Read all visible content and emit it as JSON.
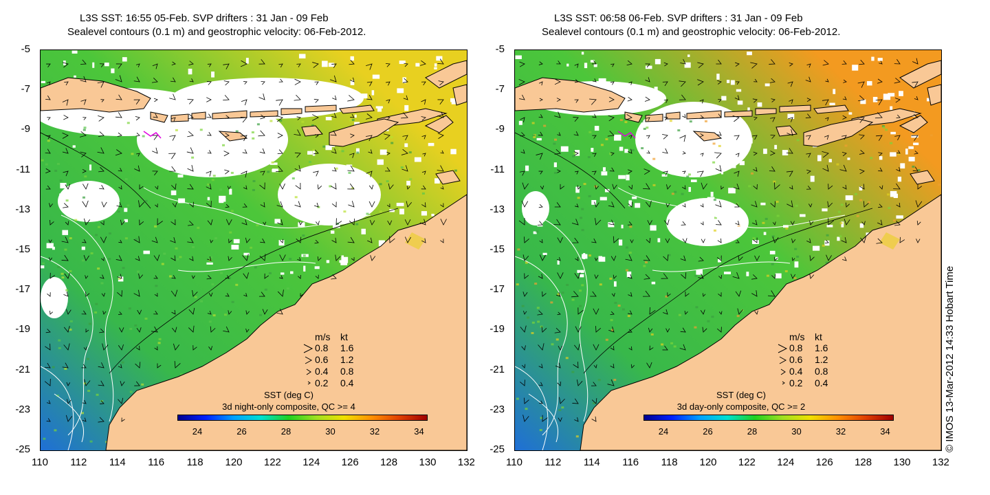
{
  "panels": [
    {
      "title_line1": "L3S SST: 16:55 05-Feb. SVP drifters : 31 Jan - 09 Feb",
      "title_line2": "Sealevel contours (0.1 m) and geostrophic velocity: 06-Feb-2012.",
      "colorbar_title": "SST (deg C)",
      "colorbar_subtitle": "3d night-only composite, QC >= 4",
      "mode": "night"
    },
    {
      "title_line1": "L3S SST: 06:58 06-Feb. SVP drifters : 31 Jan - 09 Feb",
      "title_line2": "Sealevel contours (0.1 m) and geostrophic velocity: 06-Feb-2012.",
      "colorbar_title": "SST (deg C)",
      "colorbar_subtitle": "3d day-only composite, QC >= 2",
      "mode": "day"
    }
  ],
  "y_ticks": [
    "-5",
    "-7",
    "-9",
    "-11",
    "-13",
    "-15",
    "-17",
    "-19",
    "-21",
    "-23",
    "-25"
  ],
  "x_ticks": [
    "110",
    "112",
    "114",
    "116",
    "118",
    "120",
    "122",
    "124",
    "126",
    "128",
    "130",
    "132"
  ],
  "velocity_legend": {
    "header_ms": "m/s",
    "header_kt": "kt",
    "rows": [
      {
        "ms": "0.8",
        "kt": "1.6"
      },
      {
        "ms": "0.6",
        "kt": "1.2"
      },
      {
        "ms": "0.4",
        "kt": "0.8"
      },
      {
        "ms": "0.2",
        "kt": "0.4"
      }
    ]
  },
  "colorbar_ticks": [
    "24",
    "26",
    "28",
    "30",
    "32",
    "34"
  ],
  "credit": "© IMOS 13-Mar-2012 14:33 Hobart Time",
  "colors": {
    "land": "#f9c896",
    "sst_low": "#1f6fd6",
    "sst_mid": "#4cc63a",
    "sst_high": "#e8d020",
    "sst_hot": "#f39a20"
  }
}
